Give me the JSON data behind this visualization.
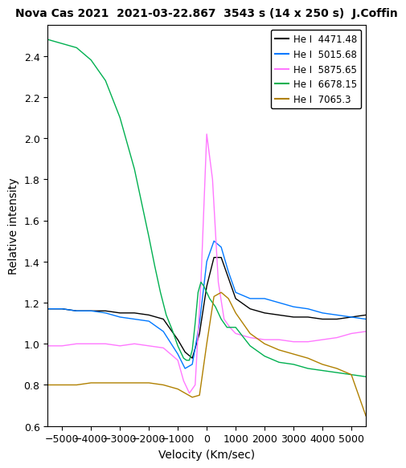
{
  "title": "Nova Cas 2021  2021-03-22.867  3543 s (14 x 250 s)  J.Coffin",
  "xlabel": "Velocity (Km/sec)",
  "ylabel": "Relative intensity",
  "xlim": [
    -5500,
    5500
  ],
  "ylim": [
    0.6,
    2.55
  ],
  "lines": [
    {
      "label": "He I  4471.48",
      "color": "#000000",
      "velocities": [
        -5500,
        -5000,
        -4500,
        -4000,
        -3500,
        -3000,
        -2500,
        -2000,
        -1500,
        -1000,
        -750,
        -500,
        -250,
        0,
        250,
        500,
        750,
        1000,
        1500,
        2000,
        2500,
        3000,
        3500,
        4000,
        4500,
        5000,
        5500
      ],
      "intensities": [
        1.17,
        1.17,
        1.16,
        1.16,
        1.16,
        1.15,
        1.15,
        1.14,
        1.12,
        1.02,
        0.96,
        0.93,
        1.05,
        1.28,
        1.42,
        1.42,
        1.32,
        1.22,
        1.17,
        1.15,
        1.14,
        1.13,
        1.13,
        1.12,
        1.12,
        1.13,
        1.14
      ]
    },
    {
      "label": "He I  5015.68",
      "color": "#0078ff",
      "velocities": [
        -5500,
        -5000,
        -4500,
        -4000,
        -3500,
        -3000,
        -2500,
        -2000,
        -1500,
        -1000,
        -750,
        -500,
        -250,
        0,
        250,
        500,
        750,
        1000,
        1500,
        2000,
        2500,
        3000,
        3500,
        4000,
        4500,
        5000,
        5500
      ],
      "intensities": [
        1.17,
        1.17,
        1.16,
        1.16,
        1.15,
        1.13,
        1.12,
        1.11,
        1.06,
        0.95,
        0.88,
        0.9,
        1.1,
        1.4,
        1.5,
        1.47,
        1.35,
        1.25,
        1.22,
        1.22,
        1.2,
        1.18,
        1.17,
        1.15,
        1.14,
        1.13,
        1.12
      ]
    },
    {
      "label": "He I  5875.65",
      "color": "#ff78ff",
      "velocities": [
        -5500,
        -5000,
        -4500,
        -4000,
        -3500,
        -3000,
        -2500,
        -2000,
        -1500,
        -1000,
        -800,
        -600,
        -400,
        -200,
        0,
        200,
        400,
        600,
        800,
        1000,
        1500,
        2000,
        2500,
        3000,
        3500,
        4000,
        4500,
        5000,
        5500
      ],
      "intensities": [
        0.99,
        0.99,
        1.0,
        1.0,
        1.0,
        0.99,
        1.0,
        0.99,
        0.98,
        0.92,
        0.82,
        0.76,
        0.8,
        1.3,
        2.02,
        1.8,
        1.3,
        1.12,
        1.08,
        1.05,
        1.03,
        1.02,
        1.02,
        1.01,
        1.01,
        1.02,
        1.03,
        1.05,
        1.06
      ]
    },
    {
      "label": "He I  6678.15",
      "color": "#00b050",
      "velocities": [
        -5500,
        -5000,
        -4500,
        -4000,
        -3500,
        -3000,
        -2500,
        -2000,
        -1800,
        -1600,
        -1400,
        -1200,
        -1000,
        -900,
        -800,
        -700,
        -600,
        -500,
        -400,
        -300,
        -200,
        -100,
        0,
        100,
        200,
        300,
        400,
        500,
        600,
        700,
        800,
        1000,
        1500,
        2000,
        2500,
        3000,
        3500,
        4000,
        4500,
        5000,
        5500
      ],
      "intensities": [
        2.48,
        2.46,
        2.44,
        2.38,
        2.28,
        2.1,
        1.85,
        1.52,
        1.38,
        1.25,
        1.14,
        1.07,
        0.99,
        0.96,
        0.93,
        0.92,
        0.92,
        0.97,
        1.1,
        1.25,
        1.3,
        1.28,
        1.25,
        1.22,
        1.2,
        1.18,
        1.15,
        1.12,
        1.1,
        1.08,
        1.08,
        1.08,
        0.99,
        0.94,
        0.91,
        0.9,
        0.88,
        0.87,
        0.86,
        0.85,
        0.84
      ]
    },
    {
      "label": "He I  7065.3",
      "color": "#b08000",
      "velocities": [
        -5500,
        -5000,
        -4500,
        -4000,
        -3500,
        -3000,
        -2500,
        -2000,
        -1500,
        -1000,
        -750,
        -500,
        -250,
        0,
        250,
        500,
        750,
        1000,
        1500,
        2000,
        2500,
        3000,
        3500,
        4000,
        4500,
        5000,
        5500
      ],
      "intensities": [
        0.8,
        0.8,
        0.8,
        0.81,
        0.81,
        0.81,
        0.81,
        0.81,
        0.8,
        0.78,
        0.76,
        0.74,
        0.75,
        1.0,
        1.23,
        1.25,
        1.22,
        1.15,
        1.05,
        1.0,
        0.97,
        0.95,
        0.93,
        0.9,
        0.88,
        0.85,
        0.65
      ]
    }
  ],
  "xticks": [
    -5000,
    -4000,
    -3000,
    -2000,
    -1000,
    0,
    1000,
    2000,
    3000,
    4000,
    5000
  ],
  "yticks": [
    0.6,
    0.8,
    1.0,
    1.2,
    1.4,
    1.6,
    1.8,
    2.0,
    2.2,
    2.4
  ],
  "title_fontsize": 10,
  "axis_label_fontsize": 10,
  "tick_fontsize": 9,
  "legend_fontsize": 8.5
}
